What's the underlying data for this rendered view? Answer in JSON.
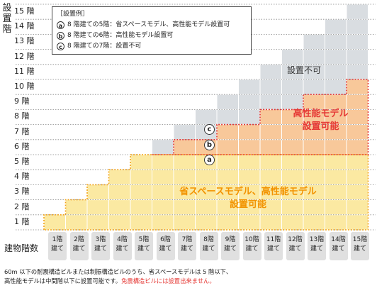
{
  "axis": {
    "y_title": "設置階",
    "x_title": "建物階数"
  },
  "floors": [
    "1 階",
    "2 階",
    "3 階",
    "4 階",
    "5 階",
    "6 階",
    "7 階",
    "8 階",
    "9 階",
    "10 階",
    "11 階",
    "12 階",
    "13 階",
    "14 階",
    "15 階"
  ],
  "buildings": [
    {
      "n": "1階",
      "u": "建て"
    },
    {
      "n": "2階",
      "u": "建て"
    },
    {
      "n": "3階",
      "u": "建て"
    },
    {
      "n": "4階",
      "u": "建て"
    },
    {
      "n": "5階",
      "u": "建て"
    },
    {
      "n": "6階",
      "u": "建て"
    },
    {
      "n": "7階",
      "u": "建て"
    },
    {
      "n": "8階",
      "u": "建て"
    },
    {
      "n": "9階",
      "u": "建て"
    },
    {
      "n": "10階",
      "u": "建て"
    },
    {
      "n": "11階",
      "u": "建て"
    },
    {
      "n": "12階",
      "u": "建て"
    },
    {
      "n": "13階",
      "u": "建て"
    },
    {
      "n": "14階",
      "u": "建て"
    },
    {
      "n": "15階",
      "u": "建て"
    }
  ],
  "legend": {
    "title": "［設置例］",
    "items": [
      {
        "mark": "a",
        "text": "8 階建ての5階：省スペースモデル、高性能モデル設置可"
      },
      {
        "mark": "b",
        "text": "8 階建ての6階：高性能モデル設置可"
      },
      {
        "mark": "c",
        "text": "8 階建ての7階：設置不可"
      }
    ]
  },
  "zones": {
    "eco_line1": "省スペースモデル、高性能モデル",
    "eco_line2": "設置可能",
    "high_line1": "高性能モデル",
    "high_line2": "設置可能",
    "na": "設置不可"
  },
  "markers": [
    "c",
    "b",
    "a"
  ],
  "note": {
    "line1": "60m 以下の耐震構造ビルまたは制振構造ビルのうち、省スペースモデルは 5 階以下、",
    "line2_black": "高性能モデルは中間階以下に設置可能です。",
    "line2_red": "免震構造ビルには設置出来ません。"
  },
  "colors": {
    "eco_fill": "#fbe9a2",
    "eco_border": "#f3a51c",
    "high_fill": "#f8c89a",
    "high_border": "#e53935",
    "na_fill": "#d9dde1",
    "xcell": "#e0e0e0"
  },
  "chart_data": {
    "type": "table",
    "rows_floor": [
      1,
      2,
      3,
      4,
      5,
      6,
      7,
      8,
      9,
      10,
      11,
      12,
      13,
      14,
      15
    ],
    "cols_building": [
      1,
      2,
      3,
      4,
      5,
      6,
      7,
      8,
      9,
      10,
      11,
      12,
      13,
      14,
      15
    ],
    "rule": {
      "eco_and_high": "floor <= min(building, 5)",
      "high_only": "5 < floor <= ceil(building/2)+2",
      "not_allowed": "ceil(building/2)+2 < floor <= building"
    },
    "high_max_floor_by_building": [
      1,
      2,
      3,
      4,
      5,
      5,
      6,
      6,
      7,
      7,
      8,
      8,
      9,
      9,
      10
    ]
  }
}
